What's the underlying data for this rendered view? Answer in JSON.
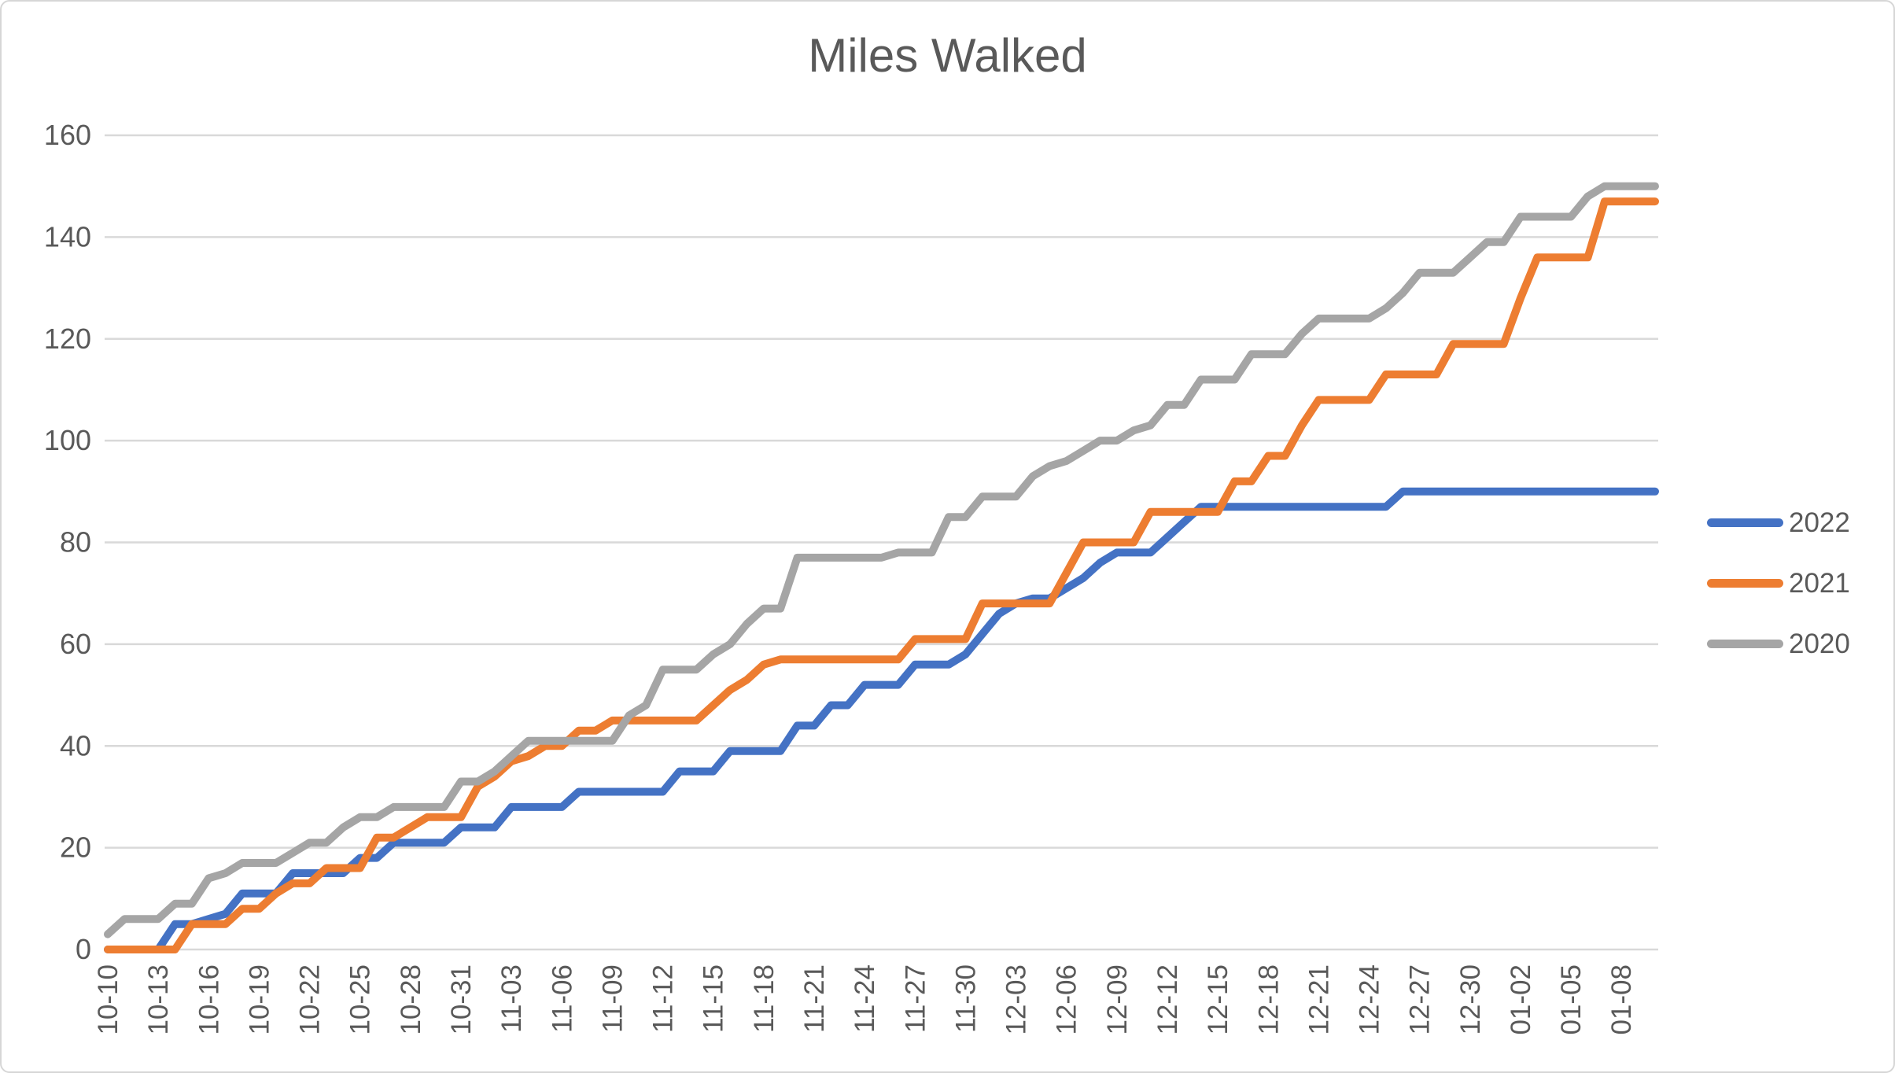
{
  "title": "Miles Walked",
  "colors": {
    "accent_blue": "#4472C4",
    "accent_orange": "#ED7D31",
    "accent_gray": "#A5A5A5",
    "text": "#595959",
    "grid": "#D9D9D9"
  },
  "legend": {
    "position": "right",
    "items": [
      {
        "label": "2022",
        "color": "#4472C4"
      },
      {
        "label": "2021",
        "color": "#ED7D31"
      },
      {
        "label": "2020",
        "color": "#A5A5A5"
      }
    ]
  },
  "chart_data": {
    "type": "line",
    "title": "Miles Walked",
    "xlabel": "",
    "ylabel": "",
    "ylim": [
      0,
      160
    ],
    "y_ticks": [
      0,
      20,
      40,
      60,
      80,
      100,
      120,
      140,
      160
    ],
    "grid": "horizontal",
    "legend_position": "right",
    "x_description": "daily cumulative miles, one point per day starting 10-10; axis labels shown every 3rd day; lines extend 2 days past last label 01-08",
    "x_tick_labels": [
      "10-10",
      "10-13",
      "10-16",
      "10-19",
      "10-22",
      "10-25",
      "10-28",
      "10-31",
      "11-03",
      "11-06",
      "11-09",
      "11-12",
      "11-15",
      "11-18",
      "11-21",
      "11-24",
      "11-27",
      "11-30",
      "12-03",
      "12-06",
      "12-09",
      "12-12",
      "12-15",
      "12-18",
      "12-21",
      "12-24",
      "12-27",
      "12-30",
      "01-02",
      "01-05",
      "01-08"
    ],
    "tick_every_n_points": 3,
    "points_per_series": 93,
    "series": [
      {
        "name": "2022",
        "color": "#4472C4",
        "final_value": 90,
        "values": [
          0,
          0,
          0,
          0,
          5,
          5,
          6,
          7,
          11,
          11,
          11,
          15,
          15,
          15,
          15,
          18,
          18,
          21,
          21,
          21,
          21,
          24,
          24,
          24,
          28,
          28,
          28,
          28,
          31,
          31,
          31,
          31,
          31,
          31,
          35,
          35,
          35,
          39,
          39,
          39,
          39,
          44,
          44,
          48,
          48,
          52,
          52,
          52,
          56,
          56,
          56,
          58,
          62,
          66,
          68,
          69,
          69,
          71,
          73,
          76,
          78,
          78,
          78,
          81,
          84,
          87,
          87,
          87,
          87,
          87,
          87,
          87,
          87,
          87,
          87,
          87,
          87,
          90,
          90,
          90,
          90,
          90,
          90,
          90,
          90,
          90,
          90,
          90,
          90,
          90,
          90,
          90,
          90
        ]
      },
      {
        "name": "2021",
        "color": "#ED7D31",
        "final_value": 147,
        "values": [
          0,
          0,
          0,
          0,
          0,
          5,
          5,
          5,
          8,
          8,
          11,
          13,
          13,
          16,
          16,
          16,
          22,
          22,
          24,
          26,
          26,
          26,
          32,
          34,
          37,
          38,
          40,
          40,
          43,
          43,
          45,
          45,
          45,
          45,
          45,
          45,
          48,
          51,
          53,
          56,
          57,
          57,
          57,
          57,
          57,
          57,
          57,
          57,
          61,
          61,
          61,
          61,
          68,
          68,
          68,
          68,
          68,
          74,
          80,
          80,
          80,
          80,
          86,
          86,
          86,
          86,
          86,
          92,
          92,
          97,
          97,
          103,
          108,
          108,
          108,
          108,
          113,
          113,
          113,
          113,
          119,
          119,
          119,
          119,
          128,
          136,
          136,
          136,
          136,
          147,
          147,
          147,
          147
        ]
      },
      {
        "name": "2020",
        "color": "#A5A5A5",
        "final_value": 150,
        "values": [
          3,
          6,
          6,
          6,
          9,
          9,
          14,
          15,
          17,
          17,
          17,
          19,
          21,
          21,
          24,
          26,
          26,
          28,
          28,
          28,
          28,
          33,
          33,
          35,
          38,
          41,
          41,
          41,
          41,
          41,
          41,
          46,
          48,
          55,
          55,
          55,
          58,
          60,
          64,
          67,
          67,
          77,
          77,
          77,
          77,
          77,
          77,
          78,
          78,
          78,
          85,
          85,
          89,
          89,
          89,
          93,
          95,
          96,
          98,
          100,
          100,
          102,
          103,
          107,
          107,
          112,
          112,
          112,
          117,
          117,
          117,
          121,
          124,
          124,
          124,
          124,
          126,
          129,
          133,
          133,
          133,
          136,
          139,
          139,
          144,
          144,
          144,
          144,
          148,
          150,
          150,
          150,
          150
        ]
      }
    ]
  }
}
